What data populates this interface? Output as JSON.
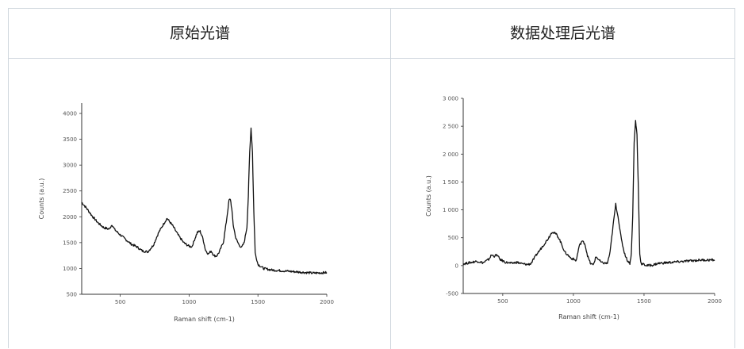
{
  "header": {
    "left_title": "原始光谱",
    "right_title": "数据处理后光谱"
  },
  "chart_data": [
    {
      "type": "line",
      "xlabel": "Raman shift (cm-1)",
      "ylabel": "Counts (a.u.)",
      "xlim": [
        220,
        2000
      ],
      "ylim": [
        500,
        4200
      ],
      "xticks": [
        500,
        1000,
        1500,
        2000
      ],
      "yticks": [
        500,
        1000,
        1500,
        2000,
        2500,
        3000,
        3500,
        4000
      ],
      "xtick_labels": [
        "500",
        "1000",
        "1500",
        "2000"
      ],
      "ytick_labels": [
        "500",
        "1000",
        "1500",
        "2000",
        "2500",
        "3000",
        "3500",
        "4000"
      ],
      "series": [
        {
          "x": [
            220,
            260,
            300,
            340,
            380,
            420,
            440,
            460,
            500,
            540,
            580,
            620,
            660,
            700,
            740,
            780,
            810,
            840,
            860,
            880,
            920,
            960,
            1000,
            1020,
            1040,
            1060,
            1080,
            1100,
            1120,
            1140,
            1160,
            1180,
            1200,
            1220,
            1250,
            1270,
            1290,
            1300,
            1310,
            1320,
            1340,
            1360,
            1380,
            1400,
            1420,
            1430,
            1440,
            1450,
            1460,
            1470,
            1480,
            1500,
            1540,
            1600,
            1700,
            1800,
            1900,
            2000
          ],
          "y": [
            2280,
            2150,
            2000,
            1880,
            1790,
            1760,
            1850,
            1750,
            1650,
            1560,
            1470,
            1420,
            1340,
            1320,
            1450,
            1700,
            1840,
            1970,
            1900,
            1830,
            1650,
            1500,
            1430,
            1420,
            1560,
            1700,
            1720,
            1580,
            1350,
            1280,
            1340,
            1250,
            1240,
            1320,
            1520,
            1900,
            2320,
            2340,
            2150,
            1850,
            1580,
            1470,
            1400,
            1500,
            1800,
            2400,
            3250,
            3720,
            3250,
            2100,
            1300,
            1080,
            1000,
            970,
            950,
            930,
            910,
            920
          ]
        }
      ]
    },
    {
      "type": "line",
      "xlabel": "Raman shift (cm-1)",
      "ylabel": "Counts (a.u.)",
      "xlim": [
        220,
        2000
      ],
      "ylim": [
        -500,
        3000
      ],
      "xticks": [
        500,
        1000,
        1500,
        2000
      ],
      "yticks": [
        -500,
        0,
        500,
        1000,
        1500,
        2000,
        2500,
        3000
      ],
      "xtick_labels": [
        "500",
        "1000",
        "1500",
        "2000"
      ],
      "ytick_labels": [
        "-500",
        "0",
        "500",
        "1 000",
        "1 500",
        "2 000",
        "2 500",
        "3 000"
      ],
      "series": [
        {
          "x": [
            220,
            280,
            320,
            360,
            400,
            420,
            440,
            460,
            480,
            520,
            560,
            600,
            640,
            680,
            700,
            740,
            780,
            820,
            850,
            880,
            900,
            940,
            980,
            1020,
            1040,
            1060,
            1080,
            1100,
            1120,
            1140,
            1160,
            1200,
            1240,
            1260,
            1280,
            1300,
            1320,
            1340,
            1360,
            1380,
            1400,
            1410,
            1420,
            1430,
            1440,
            1450,
            1460,
            1470,
            1480,
            1500,
            1520,
            1560,
            1600,
            1700,
            1800,
            1900,
            2000
          ],
          "y": [
            30,
            60,
            80,
            50,
            110,
            190,
            170,
            190,
            110,
            60,
            40,
            60,
            30,
            20,
            40,
            200,
            340,
            480,
            610,
            560,
            480,
            240,
            140,
            90,
            340,
            440,
            400,
            180,
            40,
            10,
            160,
            50,
            40,
            240,
            700,
            1100,
            820,
            460,
            240,
            100,
            40,
            200,
            900,
            2200,
            2600,
            2350,
            1400,
            200,
            30,
            20,
            0,
            10,
            40,
            60,
            80,
            100,
            100
          ]
        }
      ]
    }
  ]
}
